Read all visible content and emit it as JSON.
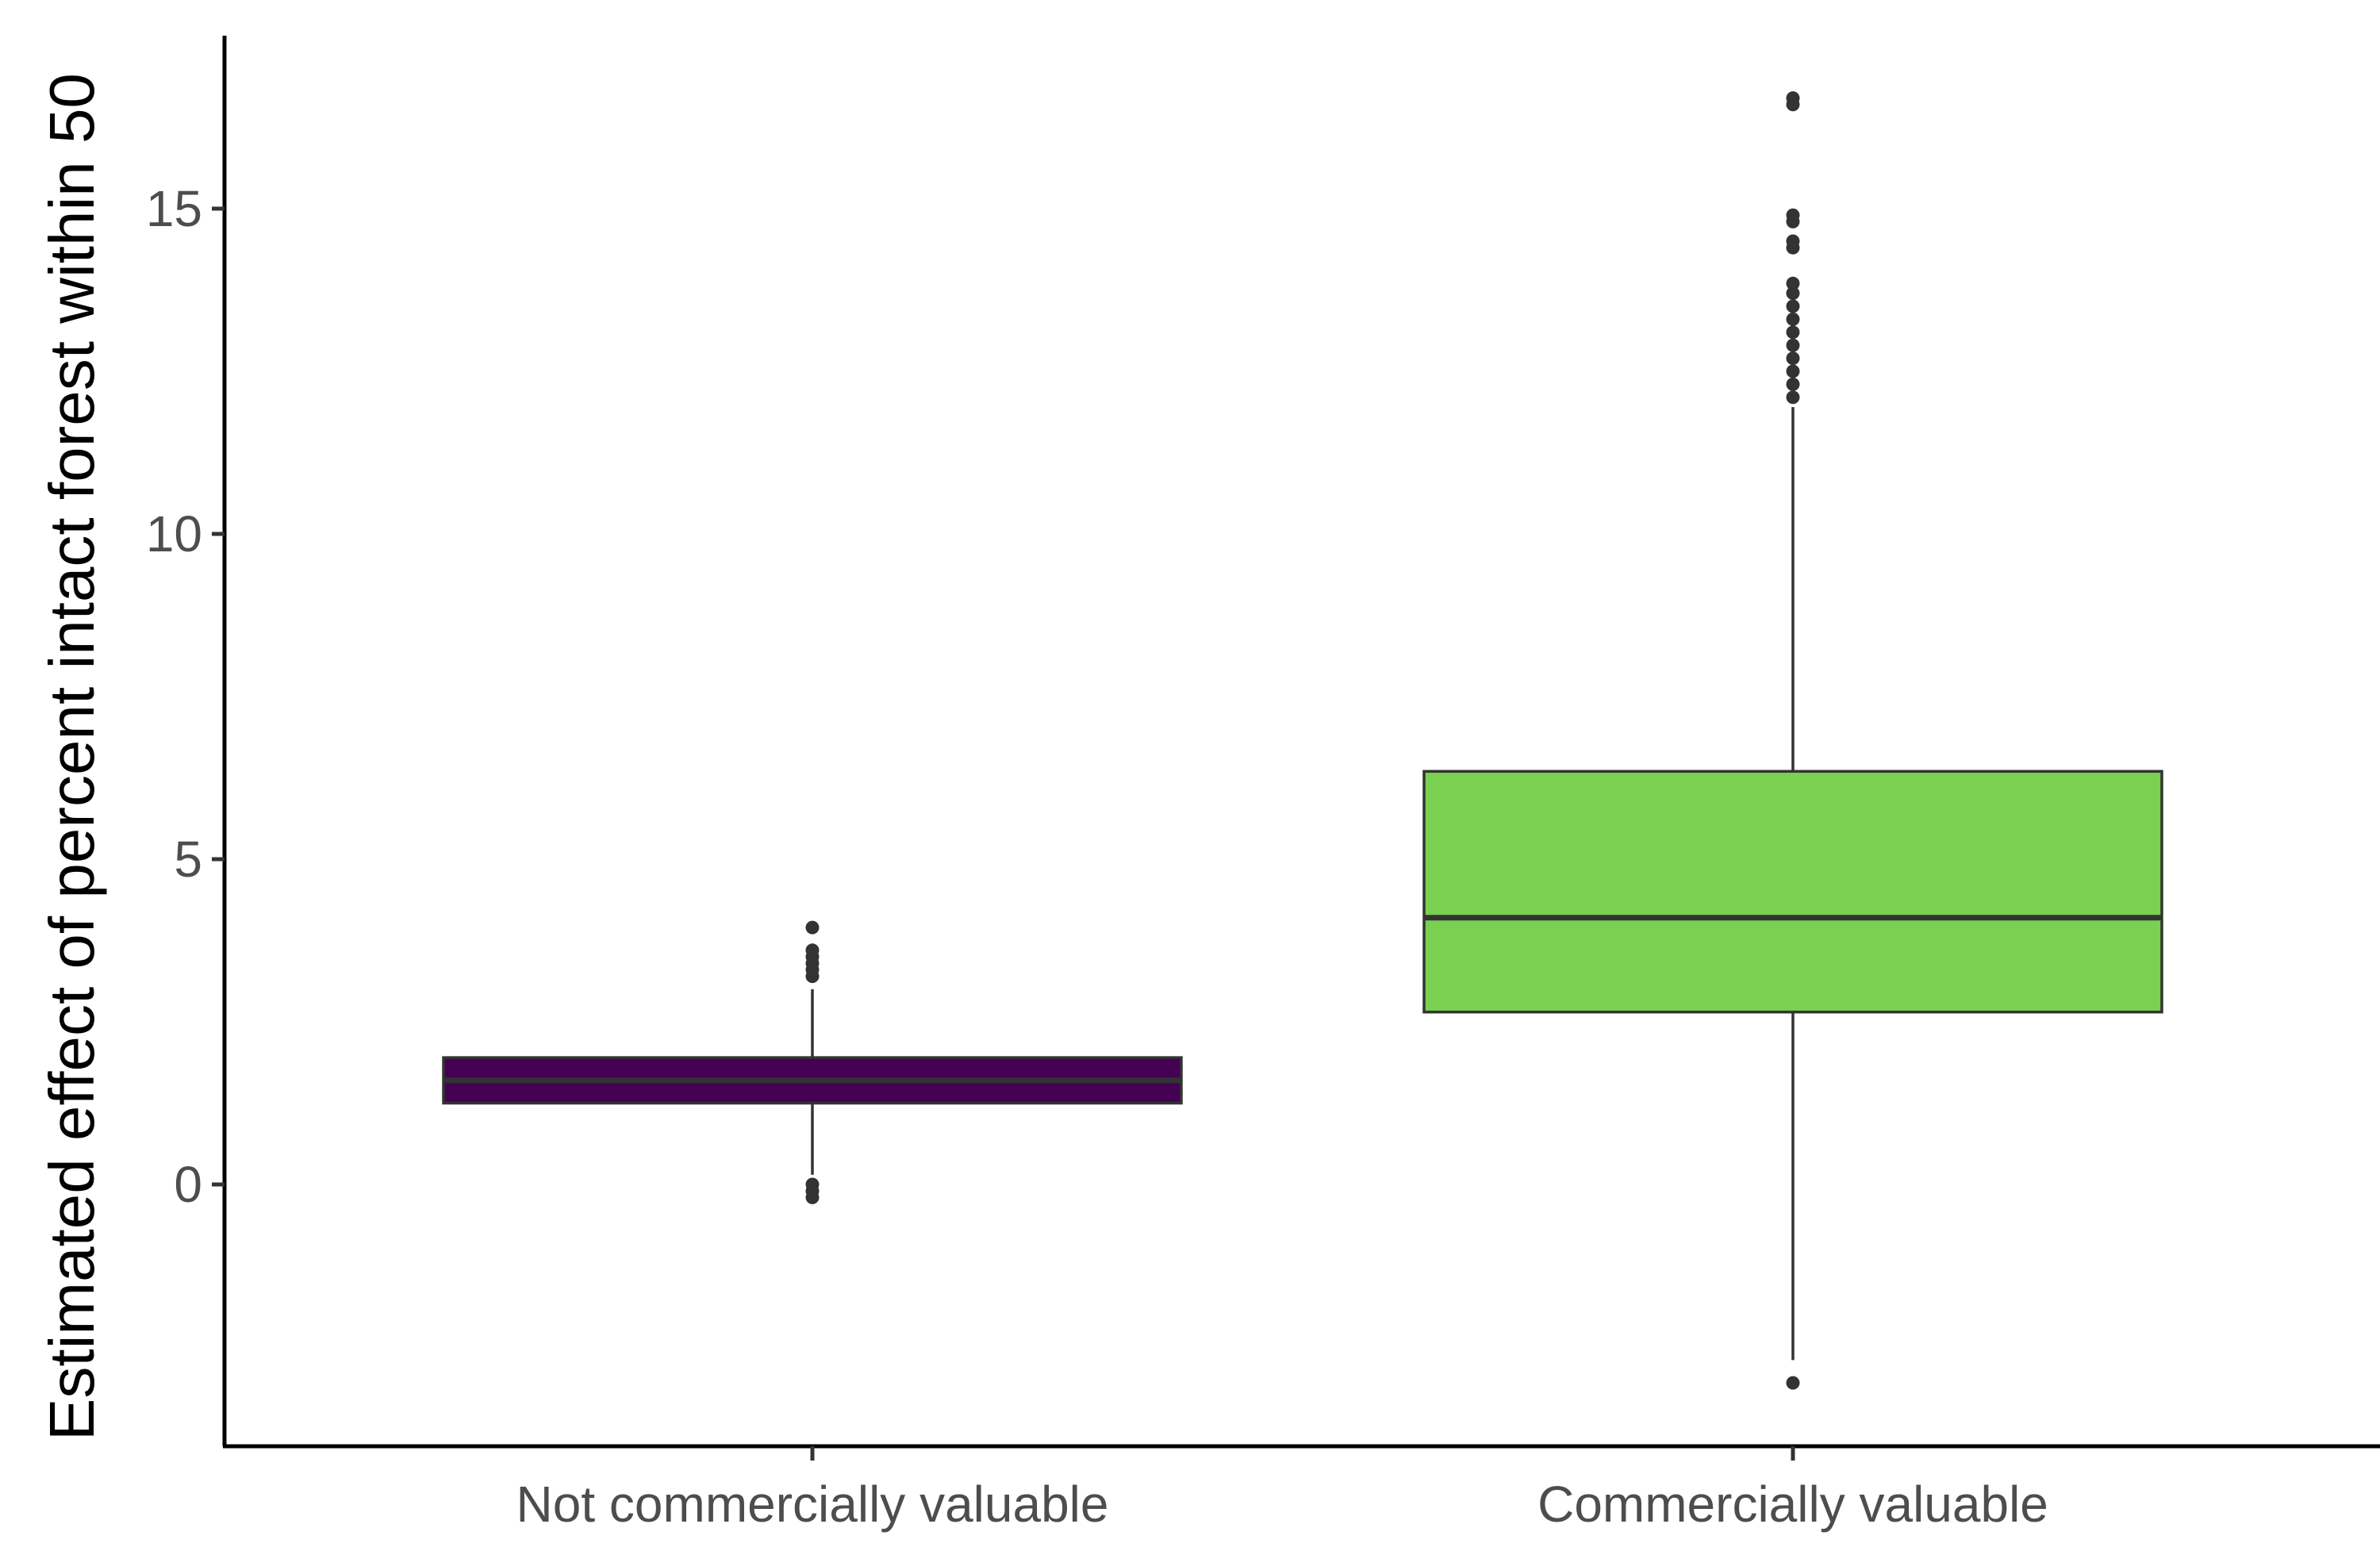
{
  "chart_data": {
    "type": "boxplot",
    "title": "",
    "xlabel": "",
    "ylabel": "Estimated effect of percent intact forest within 50",
    "ylim": [
      -4,
      17.5
    ],
    "y_ticks": [
      0,
      5,
      10,
      15
    ],
    "y_tick_labels": [
      "0",
      "5",
      "10",
      "15"
    ],
    "categories": [
      "Not commercially valuable",
      "Commercially valuable"
    ],
    "grid": false,
    "legend": "none",
    "boxes": [
      {
        "category": "Not commercially valuable",
        "color": "#440154",
        "whisker_low": 0.15,
        "q1": 1.25,
        "median": 1.6,
        "q3": 1.95,
        "whisker_high": 3.0,
        "outliers": [
          3.2,
          3.3,
          3.4,
          3.5,
          3.6,
          3.95,
          0.0,
          -0.1,
          -0.2
        ]
      },
      {
        "category": "Commercially valuable",
        "color": "#7ad151",
        "whisker_low": -2.7,
        "q1": 2.65,
        "median": 4.1,
        "q3": 6.35,
        "whisker_high": 11.95,
        "outliers": [
          12.1,
          12.3,
          12.5,
          12.7,
          12.9,
          13.1,
          13.3,
          13.5,
          13.7,
          13.85,
          14.4,
          14.5,
          14.8,
          14.9,
          16.6,
          16.7,
          -3.05
        ]
      }
    ]
  }
}
